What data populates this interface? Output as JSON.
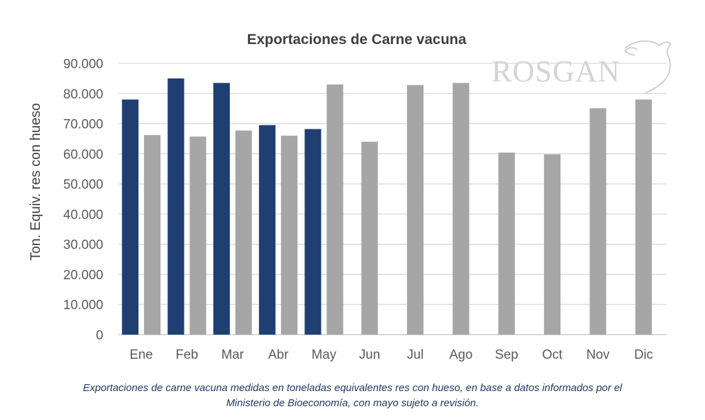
{
  "chart_data": {
    "type": "bar",
    "title": "Exportaciones de Carne vacuna",
    "xlabel": "",
    "ylabel": "Ton. Equiv. res con hueso",
    "ylim": [
      0,
      90000
    ],
    "yticks": [
      "0",
      "10.000",
      "20.000",
      "30.000",
      "40.000",
      "50.000",
      "60.000",
      "70.000",
      "80.000",
      "90.000"
    ],
    "grid": true,
    "legend": "none",
    "categories": [
      "Ene",
      "Feb",
      "Mar",
      "Abr",
      "May",
      "Jun",
      "Jul",
      "Ago",
      "Sep",
      "Oct",
      "Nov",
      "Dic"
    ],
    "series": [
      {
        "color": "#1f3f72",
        "values": [
          78000,
          85000,
          83500,
          69500,
          68200,
          null,
          null,
          null,
          null,
          null,
          null,
          null
        ]
      },
      {
        "color": "#a6a6a6",
        "values": [
          66200,
          65700,
          67700,
          66000,
          83000,
          64000,
          82800,
          83500,
          60400,
          59800,
          75100,
          78000
        ]
      }
    ]
  },
  "logo": {
    "text": "ROSGAN"
  },
  "caption": {
    "line1": "Exportaciones de carne vacuna medidas en toneladas equivalentes res con hueso, en base a datos informados por el",
    "line2": "Ministerio de Bioeconomía, con mayo sujeto a revisión."
  },
  "colors": {
    "axis_text": "#595959",
    "title_text": "#404040",
    "grid": "#d9d9d9",
    "caption": "#1f3864"
  }
}
